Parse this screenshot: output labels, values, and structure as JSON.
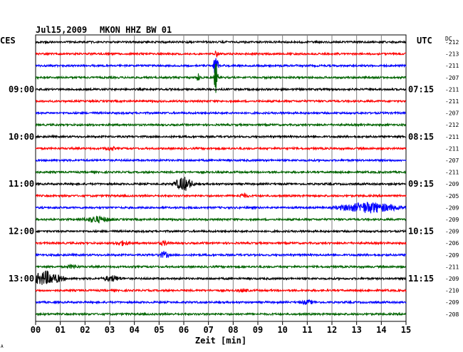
{
  "header": {
    "date": "Jul15,2009",
    "station": "MKON HHZ BW 01",
    "left_zone": "CES",
    "right_zone": "UTC",
    "dc_label": "DC"
  },
  "footer": {
    "xlabel": "Zeit [min]",
    "corner_mark": "A"
  },
  "colors": {
    "trace_cycle": [
      "#000000",
      "#ff0000",
      "#0000ff",
      "#006400"
    ],
    "grid": "#808080",
    "background": "#ffffff"
  },
  "chart_data": {
    "type": "helicorder",
    "title": "Jul15,2009   MKON HHZ BW 01",
    "xlabel": "Zeit [min]",
    "x_ticks": [
      "00",
      "01",
      "02",
      "03",
      "04",
      "05",
      "06",
      "07",
      "08",
      "09",
      "10",
      "11",
      "12",
      "13",
      "14",
      "15"
    ],
    "xlim": [
      0,
      15
    ],
    "grid": true,
    "lines_per_hour": 4,
    "left_hour_labels": [
      {
        "row": 4,
        "label": "09:00"
      },
      {
        "row": 8,
        "label": "10:00"
      },
      {
        "row": 12,
        "label": "11:00"
      },
      {
        "row": 16,
        "label": "12:00"
      },
      {
        "row": 20,
        "label": "13:00"
      }
    ],
    "right_hour_labels": [
      {
        "row": 4,
        "label": "07:15"
      },
      {
        "row": 8,
        "label": "08:15"
      },
      {
        "row": 12,
        "label": "09:15"
      },
      {
        "row": 16,
        "label": "10:15"
      },
      {
        "row": 20,
        "label": "11:15"
      }
    ],
    "dc_offsets": [
      "-212",
      "-213",
      "-211",
      "-207",
      "-211",
      "-211",
      "-207",
      "-212",
      "-211",
      "-211",
      "-207",
      "-211",
      "-209",
      "-205",
      "-209",
      "-209",
      "-209",
      "-206",
      "-209",
      "-211",
      "-209",
      "-210",
      "-209",
      "-208"
    ],
    "events": [
      {
        "row": 1,
        "minute": 7.3,
        "amp": 0.8,
        "dur": 0.15
      },
      {
        "row": 2,
        "minute": 7.3,
        "amp": 3.5,
        "dur": 0.15
      },
      {
        "row": 3,
        "minute": 7.3,
        "amp": 5.0,
        "dur": 0.1
      },
      {
        "row": 3,
        "minute": 6.6,
        "amp": 1.5,
        "dur": 0.1
      },
      {
        "row": 9,
        "minute": 3.0,
        "amp": 0.5,
        "dur": 0.3
      },
      {
        "row": 12,
        "minute": 6.0,
        "amp": 2.0,
        "dur": 0.5
      },
      {
        "row": 13,
        "minute": 8.4,
        "amp": 0.5,
        "dur": 0.3
      },
      {
        "row": 14,
        "minute": 13.5,
        "amp": 1.5,
        "dur": 1.6
      },
      {
        "row": 15,
        "minute": 2.5,
        "amp": 0.8,
        "dur": 0.8
      },
      {
        "row": 17,
        "minute": 3.5,
        "amp": 0.6,
        "dur": 0.4
      },
      {
        "row": 17,
        "minute": 5.2,
        "amp": 0.5,
        "dur": 0.3
      },
      {
        "row": 18,
        "minute": 5.2,
        "amp": 0.9,
        "dur": 0.3
      },
      {
        "row": 19,
        "minute": 1.5,
        "amp": 0.5,
        "dur": 0.3
      },
      {
        "row": 20,
        "minute": 0.4,
        "amp": 2.0,
        "dur": 0.9
      },
      {
        "row": 20,
        "minute": 3.1,
        "amp": 0.8,
        "dur": 0.5
      },
      {
        "row": 21,
        "minute": 8.4,
        "amp": 0.4,
        "dur": 0.3
      },
      {
        "row": 22,
        "minute": 11.0,
        "amp": 0.5,
        "dur": 0.4
      }
    ]
  }
}
